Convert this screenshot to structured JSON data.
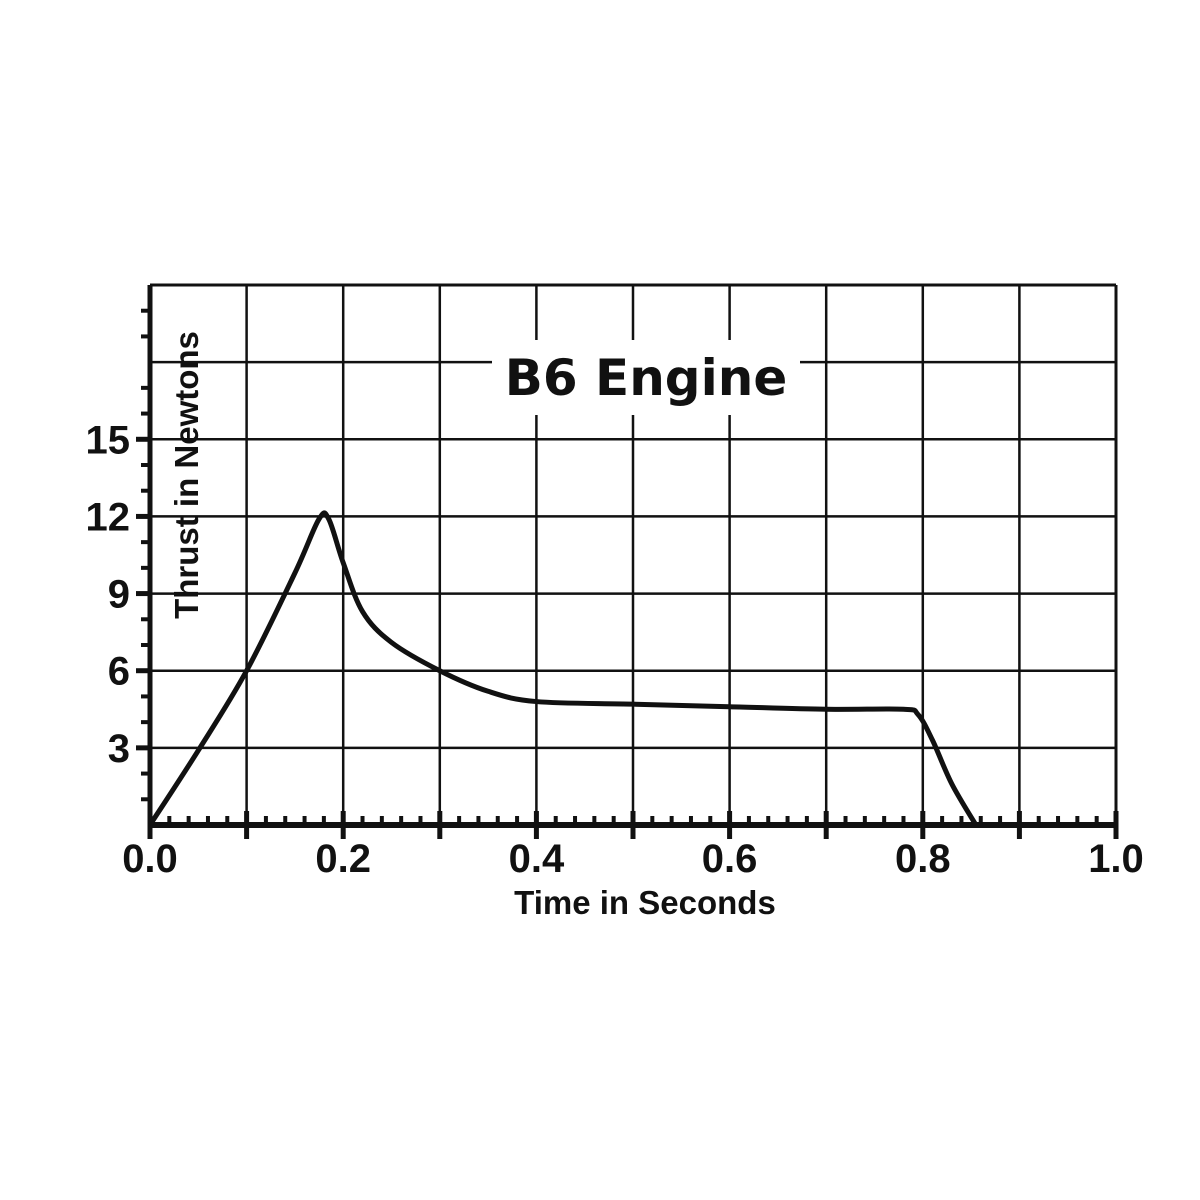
{
  "chart_data": {
    "type": "line",
    "title": "B6 Engine",
    "xlabel": "Time in Seconds",
    "ylabel": "Thrust in Newtons",
    "xlim": [
      0,
      1.0
    ],
    "ylim": [
      0,
      21
    ],
    "x_ticks": [
      "0.0",
      "0.2",
      "0.4",
      "0.6",
      "0.8",
      "1.0"
    ],
    "y_ticks": [
      "3",
      "6",
      "9",
      "12",
      "15"
    ],
    "grid": true,
    "series": [
      {
        "x": [
          0,
          0.05,
          0.1,
          0.15,
          0.175,
          0.185,
          0.2,
          0.22,
          0.25,
          0.3,
          0.35,
          0.4,
          0.5,
          0.6,
          0.7,
          0.78,
          0.795,
          0.81,
          0.83,
          0.855
        ],
        "y": [
          0,
          2.9,
          6.0,
          9.8,
          11.9,
          11.9,
          10.2,
          8.3,
          7.1,
          6.0,
          5.2,
          4.8,
          4.7,
          4.6,
          4.5,
          4.5,
          4.3,
          3.3,
          1.6,
          0
        ],
        "color": "#111111"
      }
    ]
  }
}
